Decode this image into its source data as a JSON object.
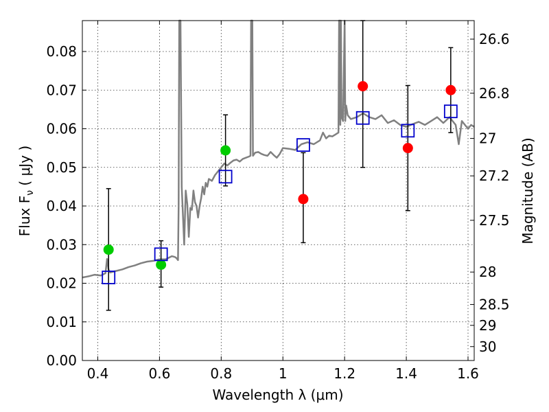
{
  "chart_data": {
    "type": "scatter",
    "xlabel": "Wavelength  λ (μm)",
    "ylabel": "Flux  F",
    "ylabel_sub": "ν",
    "ylabel_unit": " ( μJy )",
    "y2label": "Magnitude (AB)",
    "xlim": [
      0.35,
      1.62
    ],
    "ylim": [
      0.0,
      0.088
    ],
    "grid": true,
    "x_ticks": [
      0.4,
      0.6,
      0.8,
      1.0,
      1.2,
      1.4,
      1.6
    ],
    "x_tick_labels": [
      "0.4",
      "0.6",
      "0.8",
      "1",
      "1.2",
      "1.4",
      "1.6"
    ],
    "y_ticks": [
      0.0,
      0.01,
      0.02,
      0.03,
      0.04,
      0.05,
      0.06,
      0.07,
      0.08
    ],
    "y_tick_labels": [
      "0.00",
      "0.01",
      "0.02",
      "0.03",
      "0.04",
      "0.05",
      "0.06",
      "0.07",
      "0.08"
    ],
    "y2_ticks": [
      {
        "label": "26.6",
        "flux": 0.0832
      },
      {
        "label": "26.8",
        "flux": 0.0692
      },
      {
        "label": "27",
        "flux": 0.0575
      },
      {
        "label": "27.2",
        "flux": 0.0478
      },
      {
        "label": "27.5",
        "flux": 0.0363
      },
      {
        "label": "28",
        "flux": 0.0229
      },
      {
        "label": "28.5",
        "flux": 0.0145
      },
      {
        "label": "29",
        "flux": 0.0091
      },
      {
        "label": "30",
        "flux": 0.0036
      }
    ],
    "series": [
      {
        "kind": "errorbars",
        "color": "#000000",
        "points": [
          {
            "x": 0.435,
            "lo": 0.013,
            "hi": 0.0445
          },
          {
            "x": 0.605,
            "lo": 0.019,
            "hi": 0.031
          },
          {
            "x": 0.814,
            "lo": 0.0452,
            "hi": 0.0636
          },
          {
            "x": 1.066,
            "lo": 0.0305,
            "hi": 0.0538
          },
          {
            "x": 1.259,
            "lo": 0.05,
            "hi": 0.088
          },
          {
            "x": 1.405,
            "lo": 0.0388,
            "hi": 0.0712
          },
          {
            "x": 1.544,
            "lo": 0.059,
            "hi": 0.081
          }
        ]
      },
      {
        "kind": "circles",
        "color": "#00cc00",
        "x": [
          0.435,
          0.605,
          0.814
        ],
        "y": [
          0.0287,
          0.0248,
          0.0544
        ]
      },
      {
        "kind": "circles",
        "color": "#ff0000",
        "x": [
          1.066,
          1.259,
          1.405,
          1.544
        ],
        "y": [
          0.0418,
          0.071,
          0.055,
          0.07
        ]
      },
      {
        "kind": "squares",
        "color": "#0000cc",
        "x": [
          0.435,
          0.605,
          0.814,
          1.066,
          1.259,
          1.405,
          1.544
        ],
        "y": [
          0.0215,
          0.0275,
          0.0476,
          0.0558,
          0.0628,
          0.0595,
          0.0645
        ]
      },
      {
        "kind": "spectrum",
        "color": "#808080",
        "x": [
          0.35,
          0.37,
          0.39,
          0.41,
          0.425,
          0.43,
          0.435,
          0.44,
          0.46,
          0.48,
          0.5,
          0.52,
          0.54,
          0.56,
          0.58,
          0.6,
          0.62,
          0.64,
          0.65,
          0.655,
          0.66,
          0.662,
          0.664,
          0.666,
          0.668,
          0.672,
          0.68,
          0.685,
          0.69,
          0.695,
          0.7,
          0.705,
          0.71,
          0.715,
          0.72,
          0.725,
          0.73,
          0.735,
          0.74,
          0.745,
          0.75,
          0.755,
          0.76,
          0.77,
          0.78,
          0.79,
          0.8,
          0.81,
          0.82,
          0.83,
          0.84,
          0.85,
          0.86,
          0.87,
          0.88,
          0.89,
          0.895,
          0.897,
          0.899,
          0.901,
          0.903,
          0.91,
          0.92,
          0.93,
          0.94,
          0.95,
          0.96,
          0.97,
          0.98,
          0.99,
          1.0,
          1.02,
          1.04,
          1.06,
          1.08,
          1.1,
          1.12,
          1.13,
          1.14,
          1.15,
          1.16,
          1.17,
          1.18,
          1.182,
          1.184,
          1.186,
          1.188,
          1.19,
          1.195,
          1.2,
          1.202,
          1.205,
          1.21,
          1.22,
          1.24,
          1.26,
          1.28,
          1.3,
          1.32,
          1.34,
          1.36,
          1.38,
          1.4,
          1.42,
          1.44,
          1.46,
          1.48,
          1.5,
          1.52,
          1.54,
          1.56,
          1.57,
          1.58,
          1.59,
          1.6,
          1.61,
          1.62
        ],
        "y": [
          0.0215,
          0.0218,
          0.0222,
          0.022,
          0.0226,
          0.0263,
          0.0235,
          0.0228,
          0.0232,
          0.0236,
          0.0242,
          0.0246,
          0.0252,
          0.0256,
          0.0258,
          0.0262,
          0.0262,
          0.027,
          0.0268,
          0.0265,
          0.026,
          0.04,
          0.088,
          0.088,
          0.088,
          0.045,
          0.03,
          0.044,
          0.0405,
          0.032,
          0.0395,
          0.039,
          0.044,
          0.041,
          0.04,
          0.037,
          0.04,
          0.042,
          0.045,
          0.043,
          0.046,
          0.045,
          0.047,
          0.0465,
          0.048,
          0.049,
          0.05,
          0.051,
          0.0505,
          0.0512,
          0.0518,
          0.052,
          0.0515,
          0.0522,
          0.0525,
          0.0528,
          0.053,
          0.088,
          0.088,
          0.088,
          0.053,
          0.0538,
          0.054,
          0.0535,
          0.0532,
          0.053,
          0.054,
          0.0532,
          0.0525,
          0.0535,
          0.055,
          0.0548,
          0.0545,
          0.056,
          0.0565,
          0.056,
          0.057,
          0.059,
          0.0575,
          0.0582,
          0.058,
          0.0585,
          0.059,
          0.088,
          0.088,
          0.061,
          0.088,
          0.063,
          0.062,
          0.088,
          0.062,
          0.066,
          0.0635,
          0.0625,
          0.063,
          0.064,
          0.063,
          0.0625,
          0.0635,
          0.0615,
          0.0622,
          0.061,
          0.0605,
          0.0612,
          0.0618,
          0.061,
          0.062,
          0.063,
          0.0615,
          0.063,
          0.061,
          0.056,
          0.062,
          0.061,
          0.06,
          0.061,
          0.0605
        ]
      }
    ]
  }
}
